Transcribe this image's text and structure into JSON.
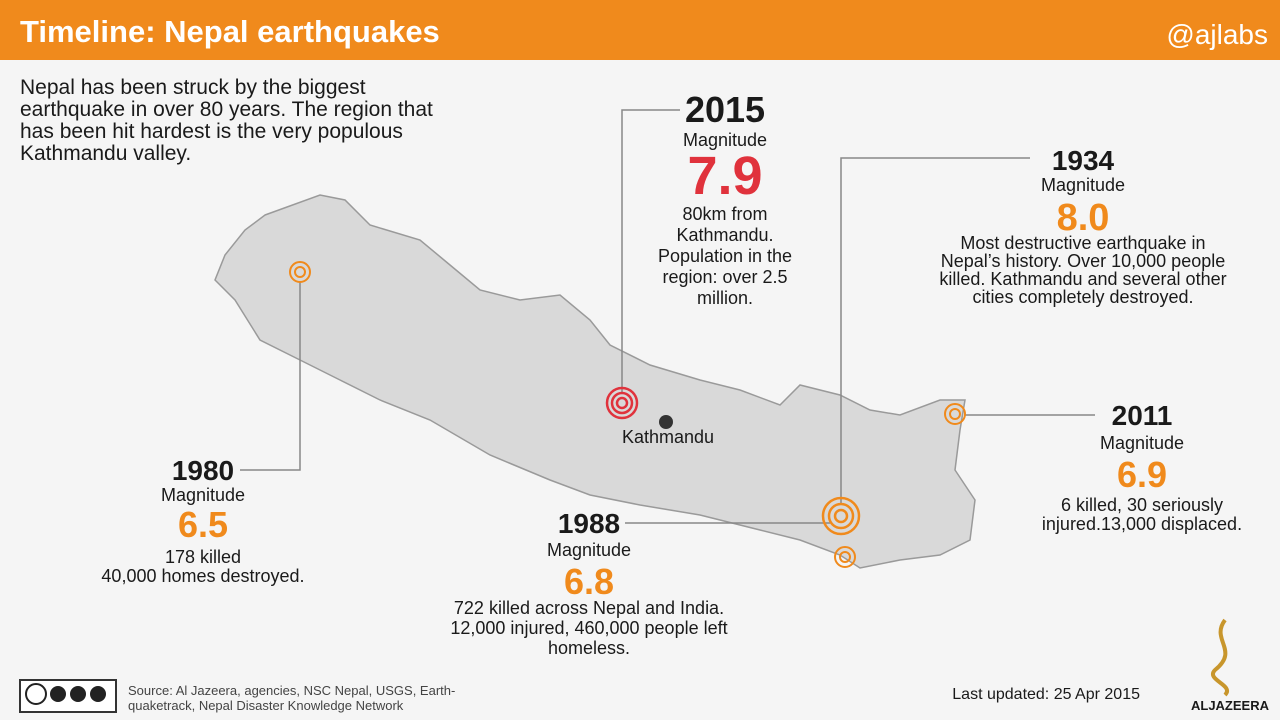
{
  "header": {
    "title": "Timeline: Nepal earthquakes",
    "handle": "@ajlabs"
  },
  "intro": [
    "Nepal has been struck by the biggest",
    "earthquake in over 80 years. The region that",
    "has been hit hardest is the very populous",
    "Kathmandu valley."
  ],
  "map": {
    "capital": "Kathmandu"
  },
  "events": [
    {
      "year": "2015",
      "magnitude_label": "Magnitude",
      "magnitude": "7.9",
      "description": [
        "80km from",
        "Kathmandu.",
        "Population in the",
        "region: over 2.5",
        "million."
      ]
    },
    {
      "year": "1934",
      "magnitude_label": "Magnitude",
      "magnitude": "8.0",
      "description": [
        "Most destructive earthquake in",
        "Nepal’s history. Over 10,000 people",
        "killed. Kathmandu and several other",
        "cities completely destroyed."
      ]
    },
    {
      "year": "1980",
      "magnitude_label": "Magnitude",
      "magnitude": "6.5",
      "description": [
        "178 killed",
        "40,000 homes destroyed."
      ]
    },
    {
      "year": "1988",
      "magnitude_label": "Magnitude",
      "magnitude": "6.8",
      "description": [
        "722 killed across Nepal and India.",
        "12,000 injured, 460,000 people left",
        "homeless."
      ]
    },
    {
      "year": "2011",
      "magnitude_label": "Magnitude",
      "magnitude": "6.9",
      "description": [
        "6 killed, 30 seriously",
        "injured.13,000 displaced."
      ]
    }
  ],
  "footer": {
    "source": [
      "Source: Al Jazeera, agencies, NSC Nepal, USGS, Earth-",
      "quaketrack, Nepal Disaster Knowledge Network"
    ],
    "updated": "Last updated: 25 Apr 2015",
    "logo": "ALJAZEERA"
  }
}
